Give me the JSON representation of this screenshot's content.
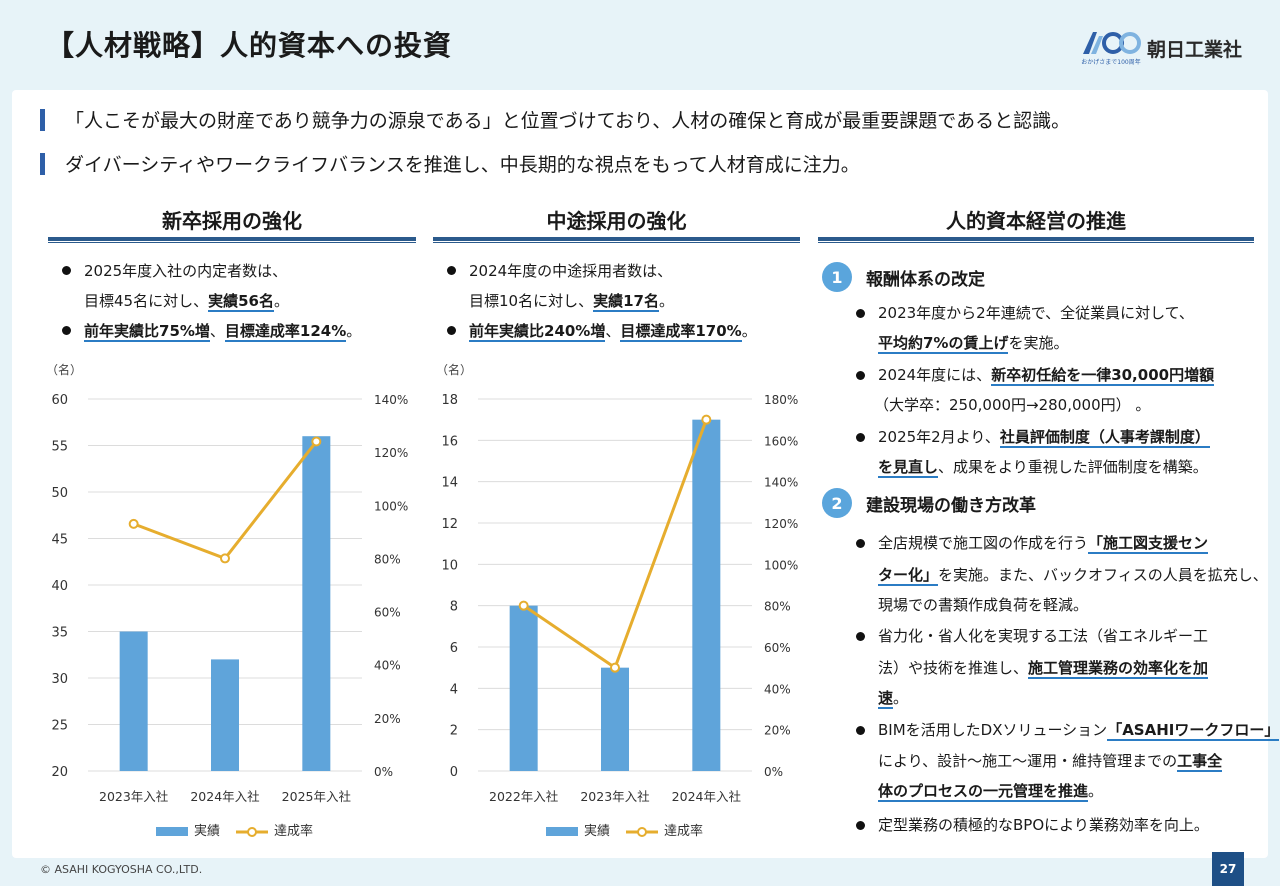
{
  "title": "【人材戦略】人的資本への投資",
  "logo": {
    "name": "朝日工業社",
    "mark_text": "A100",
    "tagline": "おかげさまで100周年"
  },
  "lead": [
    "「人こそが最大の財産であり競争力の源泉である」と位置づけており、人材の確保と育成が最重要課題であると認識。",
    "ダイバーシティやワークライフバランスを推進し、中長期的な視点をもって人材育成に注力。"
  ],
  "col1": {
    "heading": "新卒採用の強化",
    "b1_line1": "2025年度入社の内定者数は、",
    "b1_line2_pre": "目標45名に対し、",
    "b1_line2_em": "実績56名",
    "b1_line2_post": "。",
    "b2_em1": "前年実績比75%増",
    "b2_sep": "、",
    "b2_em2": "目標達成率124%",
    "b2_post": "。"
  },
  "col2": {
    "heading": "中途採用の強化",
    "b1_line1": "2024年度の中途採用者数は、",
    "b1_line2_pre": "目標10名に対し、",
    "b1_line2_em": "実績17名",
    "b1_line2_post": "。",
    "b2_em1": "前年実績比240%増",
    "b2_sep": "、",
    "b2_em2": "目標達成率170%",
    "b2_post": "。"
  },
  "col3": {
    "heading": "人的資本経営の推進",
    "s1_num": "1",
    "s1_title": "報酬体系の改定",
    "s1_b1_l1": "2023年度から2年連続で、全従業員に対して、",
    "s1_b1_l2_em": "平均約7%の賃上げ",
    "s1_b1_l2_post": "を実施。",
    "s1_b2_l1_pre": "2024年度には、",
    "s1_b2_l1_em": "新卒初任給を一律30,000円増額",
    "s1_b2_l2": "（大学卒：250,000円→280,000円） 。",
    "s1_b3_l1_pre": "2025年2月より、",
    "s1_b3_l1_em": "社員評価制度（人事考課制度）",
    "s1_b3_l2_em": "を見直し",
    "s1_b3_l2_post": "、成果をより重視した評価制度を構築。",
    "s2_num": "2",
    "s2_title": "建設現場の働き方改革",
    "s2_b1_l1_pre": "全店規模で施工図の作成を行う",
    "s2_b1_l1_em": "「施工図支援セン",
    "s2_b1_l2_em": "ター化」",
    "s2_b1_l2_post": "を実施。また、バックオフィスの人員を拡充し、",
    "s2_b1_l3": "現場での書類作成負荷を軽減。",
    "s2_b2_l1": "省力化・省人化を実現する工法（省エネルギー工",
    "s2_b2_l2_pre": "法）や技術を推進し、",
    "s2_b2_l2_em": "施工管理業務の効率化を加",
    "s2_b2_l3_em": "速",
    "s2_b2_l3_post": "。",
    "s2_b3_l1_pre": "BIMを活用したDXソリューション",
    "s2_b3_l1_em": "「ASAHIワークフロー」",
    "s2_b3_l2_pre": "により、設計～施工～運用・維持管理までの",
    "s2_b3_l2_em": "工事全",
    "s2_b3_l3_em": "体のプロセスの一元管理を推進",
    "s2_b3_l3_post": "。",
    "s2_b4": "定型業務の積極的なBPOにより業務効率を向上。"
  },
  "footer": {
    "copyright": "© ASAHI KOGYOSHA CO.,LTD.",
    "page": "27"
  },
  "colors": {
    "bar": "#5fa4da",
    "line": "#e6ad2e",
    "accent": "#2b5a8c"
  },
  "chart_data": [
    {
      "type": "bar",
      "unit_label": "（名）",
      "categories": [
        "2023年入社",
        "2024年入社",
        "2025年入社"
      ],
      "series": [
        {
          "name": "実績",
          "type": "bar",
          "axis": "left",
          "values": [
            35,
            32,
            56
          ]
        },
        {
          "name": "達成率",
          "type": "line",
          "axis": "right",
          "values": [
            93,
            80,
            124
          ]
        }
      ],
      "ylim": [
        20,
        60
      ],
      "yticks": [
        20,
        25,
        30,
        35,
        40,
        45,
        50,
        55,
        60
      ],
      "y2lim": [
        0,
        140
      ],
      "y2ticks": [
        "0%",
        "20%",
        "40%",
        "60%",
        "80%",
        "100%",
        "120%",
        "140%"
      ],
      "grid": true,
      "legend": "bottom"
    },
    {
      "type": "bar",
      "unit_label": "（名）",
      "categories": [
        "2022年入社",
        "2023年入社",
        "2024年入社"
      ],
      "series": [
        {
          "name": "実績",
          "type": "bar",
          "axis": "left",
          "values": [
            8,
            5,
            17
          ]
        },
        {
          "name": "達成率",
          "type": "line",
          "axis": "right",
          "values": [
            80,
            50,
            170
          ]
        }
      ],
      "ylim": [
        0,
        18
      ],
      "yticks": [
        0,
        2,
        4,
        6,
        8,
        10,
        12,
        14,
        16,
        18
      ],
      "y2lim": [
        0,
        180
      ],
      "y2ticks": [
        "0%",
        "20%",
        "40%",
        "60%",
        "80%",
        "100%",
        "120%",
        "140%",
        "160%",
        "180%"
      ],
      "grid": true,
      "legend": "bottom"
    }
  ]
}
